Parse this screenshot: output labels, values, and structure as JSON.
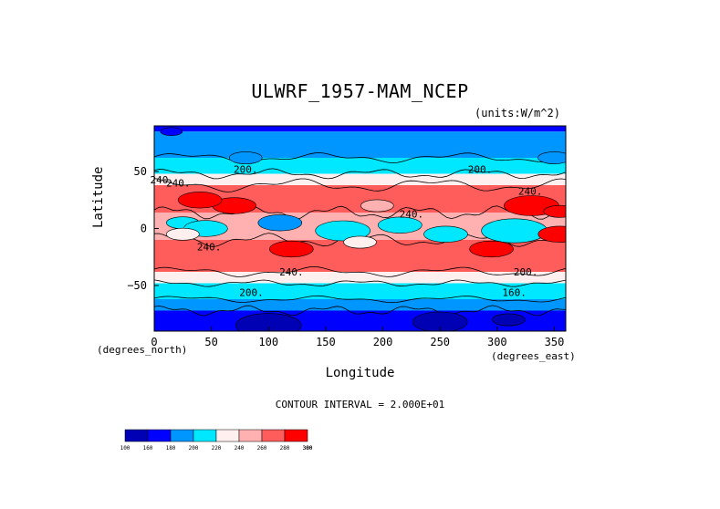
{
  "chart_data": {
    "type": "contour-map",
    "title": "ULWRF_1957-MAM_NCEP",
    "units": "(units:W/m^2)",
    "xlabel": "Longitude",
    "ylabel": "Latitude",
    "x_unit_note": "(degrees_east)",
    "y_unit_note": "(degrees_north)",
    "xlim": [
      0,
      360
    ],
    "ylim": [
      -90,
      90
    ],
    "x_ticks": [
      0,
      50,
      100,
      150,
      200,
      250,
      300,
      350
    ],
    "y_ticks": [
      -50,
      0,
      50
    ],
    "contour_interval_text": "CONTOUR INTERVAL = 2.000E+01",
    "contour_labels": [
      "200.",
      "240.",
      "240.",
      "200.",
      "240.",
      "240.",
      "240.",
      "240.",
      "200.",
      "200.",
      "160."
    ],
    "colorbar": {
      "levels": [
        100,
        160,
        180,
        200,
        220,
        240,
        260,
        280,
        300,
        380
      ],
      "tick_labels": [
        "100",
        "160",
        "180",
        "200",
        "220",
        "240",
        "260",
        "280",
        "300",
        "380"
      ],
      "colors": [
        "#0000b4",
        "#0000ff",
        "#0096ff",
        "#00e8ff",
        "#fff0ef",
        "#ffb0b0",
        "#ff5c5c",
        "#ff0000"
      ]
    },
    "bands": [
      {
        "lat_range": [
          85,
          90
        ],
        "range": "180-200"
      },
      {
        "lat_range": [
          62,
          85
        ],
        "range": "180-200"
      },
      {
        "lat_range": [
          48,
          62
        ],
        "range": "200-220"
      },
      {
        "lat_range": [
          38,
          48
        ],
        "range": "220-240"
      },
      {
        "lat_range": [
          14,
          38
        ],
        "range": "260-280"
      },
      {
        "lat_range": [
          -10,
          14
        ],
        "range": "200-260 (convective mix)"
      },
      {
        "lat_range": [
          -38,
          -10
        ],
        "range": "260-280"
      },
      {
        "lat_range": [
          -48,
          -38
        ],
        "range": "220-240"
      },
      {
        "lat_range": [
          -62,
          -48
        ],
        "range": "200-220"
      },
      {
        "lat_range": [
          -72,
          -62
        ],
        "range": "180-200"
      },
      {
        "lat_range": [
          -90,
          -72
        ],
        "range": "100-160"
      }
    ]
  }
}
